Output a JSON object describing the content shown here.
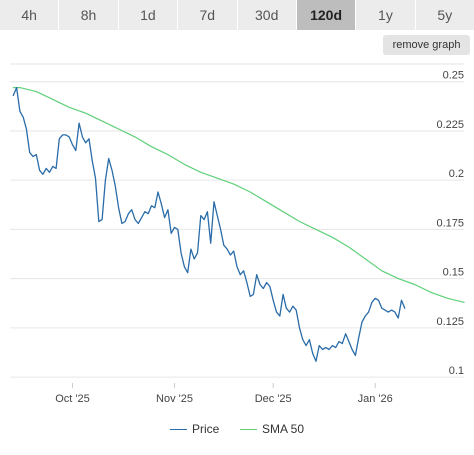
{
  "range_tabs": [
    {
      "label": "4h",
      "active": false
    },
    {
      "label": "8h",
      "active": false
    },
    {
      "label": "1d",
      "active": false
    },
    {
      "label": "7d",
      "active": false
    },
    {
      "label": "30d",
      "active": false
    },
    {
      "label": "120d",
      "active": true
    },
    {
      "label": "1y",
      "active": false
    },
    {
      "label": "5y",
      "active": false
    }
  ],
  "remove_graph_label": "remove graph",
  "legend": {
    "price_label": "Price",
    "sma_label": "SMA 50"
  },
  "colors": {
    "price": "#2a6ca8",
    "sma": "#5fd07a",
    "grid": "#e6e6e6",
    "axis_text": "#444444"
  },
  "chart_data": {
    "type": "line",
    "title": "",
    "xlabel": "",
    "ylabel": "",
    "grid": true,
    "legend_position": "bottom",
    "y_axis_side": "right",
    "ylim": [
      0.097,
      0.259
    ],
    "xlim": [
      "2025-09-12",
      "2026-01-28"
    ],
    "yticks": [
      0.1,
      0.125,
      0.15,
      0.175,
      0.2,
      0.225,
      0.25
    ],
    "ytick_labels": [
      "0.1",
      "0.125",
      "0.15",
      "0.175",
      "0.2",
      "0.225",
      "0.25"
    ],
    "xticks": [
      "2025-10-01",
      "2025-11-01",
      "2025-12-01",
      "2026-01-01"
    ],
    "xtick_labels": [
      "Oct '25",
      "Nov '25",
      "Dec '25",
      "Jan '26"
    ],
    "series": [
      {
        "name": "Price",
        "color": "#2a6ca8",
        "points": [
          [
            "2025-09-13",
            0.243
          ],
          [
            "2025-09-14",
            0.247
          ],
          [
            "2025-09-15",
            0.235
          ],
          [
            "2025-09-16",
            0.232
          ],
          [
            "2025-09-17",
            0.226
          ],
          [
            "2025-09-18",
            0.214
          ],
          [
            "2025-09-19",
            0.212
          ],
          [
            "2025-09-20",
            0.213
          ],
          [
            "2025-09-21",
            0.205
          ],
          [
            "2025-09-22",
            0.203
          ],
          [
            "2025-09-23",
            0.206
          ],
          [
            "2025-09-24",
            0.204
          ],
          [
            "2025-09-25",
            0.207
          ],
          [
            "2025-09-26",
            0.206
          ],
          [
            "2025-09-27",
            0.221
          ],
          [
            "2025-09-28",
            0.223
          ],
          [
            "2025-09-29",
            0.223
          ],
          [
            "2025-09-30",
            0.222
          ],
          [
            "2025-10-01",
            0.218
          ],
          [
            "2025-10-02",
            0.215
          ],
          [
            "2025-10-03",
            0.229
          ],
          [
            "2025-10-04",
            0.222
          ],
          [
            "2025-10-05",
            0.219
          ],
          [
            "2025-10-06",
            0.221
          ],
          [
            "2025-10-07",
            0.21
          ],
          [
            "2025-10-08",
            0.201
          ],
          [
            "2025-10-09",
            0.179
          ],
          [
            "2025-10-10",
            0.18
          ],
          [
            "2025-10-11",
            0.2
          ],
          [
            "2025-10-12",
            0.211
          ],
          [
            "2025-10-13",
            0.205
          ],
          [
            "2025-10-14",
            0.197
          ],
          [
            "2025-10-15",
            0.186
          ],
          [
            "2025-10-16",
            0.178
          ],
          [
            "2025-10-17",
            0.179
          ],
          [
            "2025-10-18",
            0.183
          ],
          [
            "2025-10-19",
            0.185
          ],
          [
            "2025-10-20",
            0.18
          ],
          [
            "2025-10-21",
            0.178
          ],
          [
            "2025-10-22",
            0.181
          ],
          [
            "2025-10-23",
            0.184
          ],
          [
            "2025-10-24",
            0.183
          ],
          [
            "2025-10-25",
            0.187
          ],
          [
            "2025-10-26",
            0.186
          ],
          [
            "2025-10-27",
            0.194
          ],
          [
            "2025-10-28",
            0.188
          ],
          [
            "2025-10-29",
            0.181
          ],
          [
            "2025-10-30",
            0.185
          ],
          [
            "2025-10-31",
            0.173
          ],
          [
            "2025-11-01",
            0.176
          ],
          [
            "2025-11-02",
            0.175
          ],
          [
            "2025-11-03",
            0.163
          ],
          [
            "2025-11-04",
            0.156
          ],
          [
            "2025-11-05",
            0.153
          ],
          [
            "2025-11-06",
            0.165
          ],
          [
            "2025-11-07",
            0.16
          ],
          [
            "2025-11-08",
            0.163
          ],
          [
            "2025-11-09",
            0.182
          ],
          [
            "2025-11-10",
            0.18
          ],
          [
            "2025-11-11",
            0.184
          ],
          [
            "2025-11-12",
            0.168
          ],
          [
            "2025-11-13",
            0.189
          ],
          [
            "2025-11-14",
            0.182
          ],
          [
            "2025-11-15",
            0.175
          ],
          [
            "2025-11-16",
            0.167
          ],
          [
            "2025-11-17",
            0.165
          ],
          [
            "2025-11-18",
            0.162
          ],
          [
            "2025-11-19",
            0.164
          ],
          [
            "2025-11-20",
            0.156
          ],
          [
            "2025-11-21",
            0.152
          ],
          [
            "2025-11-22",
            0.154
          ],
          [
            "2025-11-23",
            0.148
          ],
          [
            "2025-11-24",
            0.141
          ],
          [
            "2025-11-25",
            0.142
          ],
          [
            "2025-11-26",
            0.152
          ],
          [
            "2025-11-27",
            0.147
          ],
          [
            "2025-11-28",
            0.145
          ],
          [
            "2025-11-29",
            0.148
          ],
          [
            "2025-11-30",
            0.146
          ],
          [
            "2025-12-01",
            0.139
          ],
          [
            "2025-12-02",
            0.133
          ],
          [
            "2025-12-03",
            0.131
          ],
          [
            "2025-12-04",
            0.142
          ],
          [
            "2025-12-05",
            0.135
          ],
          [
            "2025-12-06",
            0.133
          ],
          [
            "2025-12-07",
            0.136
          ],
          [
            "2025-12-08",
            0.134
          ],
          [
            "2025-12-09",
            0.125
          ],
          [
            "2025-12-10",
            0.119
          ],
          [
            "2025-12-11",
            0.116
          ],
          [
            "2025-12-12",
            0.119
          ],
          [
            "2025-12-13",
            0.112
          ],
          [
            "2025-12-14",
            0.108
          ],
          [
            "2025-12-15",
            0.116
          ],
          [
            "2025-12-16",
            0.114
          ],
          [
            "2025-12-17",
            0.115
          ],
          [
            "2025-12-18",
            0.114
          ],
          [
            "2025-12-19",
            0.116
          ],
          [
            "2025-12-20",
            0.115
          ],
          [
            "2025-12-21",
            0.118
          ],
          [
            "2025-12-22",
            0.117
          ],
          [
            "2025-12-23",
            0.122
          ],
          [
            "2025-12-24",
            0.118
          ],
          [
            "2025-12-25",
            0.114
          ],
          [
            "2025-12-26",
            0.111
          ],
          [
            "2025-12-27",
            0.12
          ],
          [
            "2025-12-28",
            0.128
          ],
          [
            "2025-12-29",
            0.131
          ],
          [
            "2025-12-30",
            0.133
          ],
          [
            "2025-12-31",
            0.138
          ],
          [
            "2026-01-01",
            0.14
          ],
          [
            "2026-01-02",
            0.139
          ],
          [
            "2026-01-03",
            0.135
          ],
          [
            "2026-01-04",
            0.134
          ],
          [
            "2026-01-05",
            0.133
          ],
          [
            "2026-01-06",
            0.134
          ],
          [
            "2026-01-07",
            0.133
          ],
          [
            "2026-01-08",
            0.13
          ],
          [
            "2026-01-09",
            0.139
          ],
          [
            "2026-01-10",
            0.135
          ]
        ]
      },
      {
        "name": "SMA 50",
        "color": "#5fd07a",
        "points": [
          [
            "2025-09-13",
            0.247
          ],
          [
            "2025-09-15",
            0.247
          ],
          [
            "2025-09-20",
            0.245
          ],
          [
            "2025-09-25",
            0.241
          ],
          [
            "2025-09-30",
            0.237
          ],
          [
            "2025-10-05",
            0.234
          ],
          [
            "2025-10-10",
            0.23
          ],
          [
            "2025-10-15",
            0.226
          ],
          [
            "2025-10-20",
            0.222
          ],
          [
            "2025-10-25",
            0.217
          ],
          [
            "2025-10-30",
            0.213
          ],
          [
            "2025-11-04",
            0.208
          ],
          [
            "2025-11-09",
            0.204
          ],
          [
            "2025-11-14",
            0.201
          ],
          [
            "2025-11-19",
            0.198
          ],
          [
            "2025-11-24",
            0.194
          ],
          [
            "2025-11-29",
            0.189
          ],
          [
            "2025-12-04",
            0.184
          ],
          [
            "2025-12-09",
            0.179
          ],
          [
            "2025-12-14",
            0.175
          ],
          [
            "2025-12-19",
            0.171
          ],
          [
            "2025-12-24",
            0.166
          ],
          [
            "2025-12-29",
            0.16
          ],
          [
            "2026-01-03",
            0.154
          ],
          [
            "2026-01-08",
            0.15
          ],
          [
            "2026-01-13",
            0.147
          ],
          [
            "2026-01-18",
            0.143
          ],
          [
            "2026-01-23",
            0.14
          ],
          [
            "2026-01-28",
            0.138
          ]
        ]
      }
    ]
  }
}
